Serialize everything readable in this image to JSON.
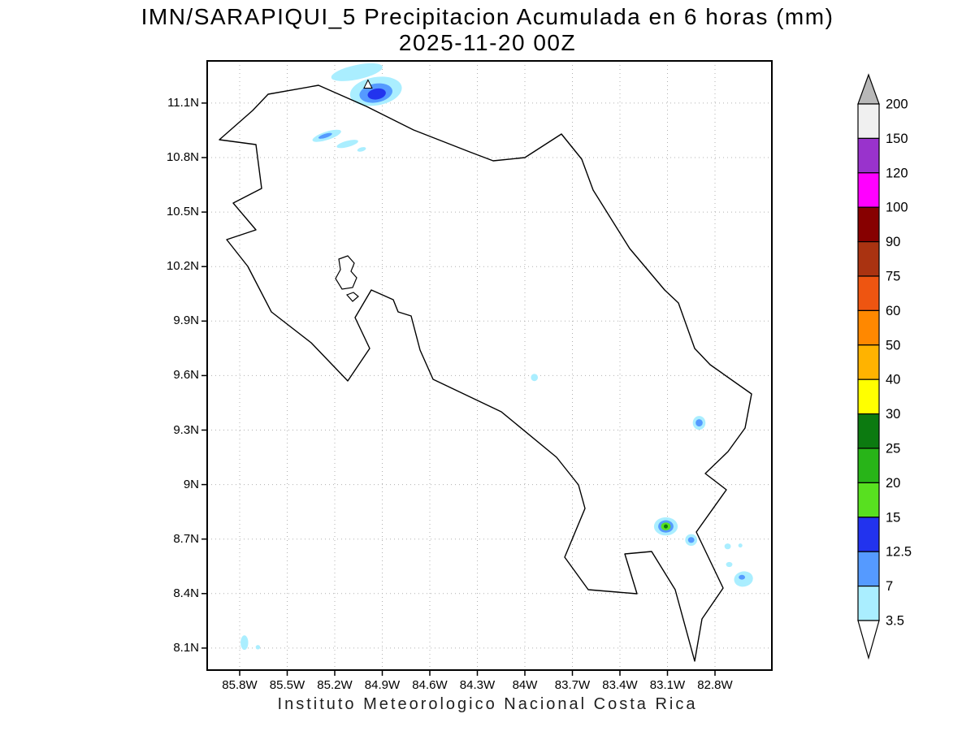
{
  "title": {
    "line1": "IMN/SARAPIQUI_5 Precipitacion Acumulada en 6 horas (mm)",
    "line2": "2025-11-20 00Z"
  },
  "footer": {
    "caption": "Instituto Meteorologico Nacional Costa Rica"
  },
  "chart_data": {
    "type": "heatmap",
    "subtype": "shaded-contour-precipitation-map",
    "title": "IMN/SARAPIQUI_5 Precipitacion Acumulada en 6 horas (mm)",
    "subtitle": "2025-11-20 00Z",
    "region": "Costa Rica",
    "units": "mm",
    "grid": "dotted",
    "axes": {
      "lon_w_range": [
        86.005,
        82.441
      ],
      "lat_n_range": [
        11.332,
        7.979
      ],
      "lon_ticks": [
        {
          "value": 85.8,
          "label": "85.8W"
        },
        {
          "value": 85.5,
          "label": "85.5W"
        },
        {
          "value": 85.2,
          "label": "85.2W"
        },
        {
          "value": 84.9,
          "label": "84.9W"
        },
        {
          "value": 84.6,
          "label": "84.6W"
        },
        {
          "value": 84.3,
          "label": "84.3W"
        },
        {
          "value": 84.0,
          "label": "84W"
        },
        {
          "value": 83.7,
          "label": "83.7W"
        },
        {
          "value": 83.4,
          "label": "83.4W"
        },
        {
          "value": 83.1,
          "label": "83.1W"
        },
        {
          "value": 82.8,
          "label": "82.8W"
        }
      ],
      "lat_ticks": [
        {
          "value": 11.1,
          "label": "11.1N"
        },
        {
          "value": 10.8,
          "label": "10.8N"
        },
        {
          "value": 10.5,
          "label": "10.5N"
        },
        {
          "value": 10.2,
          "label": "10.2N"
        },
        {
          "value": 9.9,
          "label": "9.9N"
        },
        {
          "value": 9.6,
          "label": "9.6N"
        },
        {
          "value": 9.3,
          "label": "9.3N"
        },
        {
          "value": 9.0,
          "label": "9N"
        },
        {
          "value": 8.7,
          "label": "8.7N"
        },
        {
          "value": 8.4,
          "label": "8.4N"
        },
        {
          "value": 8.1,
          "label": "8.1N"
        }
      ]
    },
    "colorbar": {
      "levels_top_to_bottom": [
        "200",
        "150",
        "120",
        "100",
        "90",
        "75",
        "60",
        "50",
        "40",
        "30",
        "25",
        "20",
        "15",
        "12.5",
        "7",
        "3.5"
      ],
      "segment_colors_top_to_bottom": [
        "#f0f0f0",
        "#9933cc",
        "#ff00ff",
        "#870000",
        "#aa3311",
        "#ee5511",
        "#ff8800",
        "#ffb300",
        "#ffff00",
        "#0c7a10",
        "#28b418",
        "#58e020",
        "#2233ee",
        "#559aff",
        "#aaeeff"
      ],
      "above_max_color": "#b8b8b8",
      "below_min_color": "#ffffff"
    },
    "precip_cells": [
      {
        "name": "north-band-west",
        "lon_w": 85.06,
        "lat_n": 11.27,
        "rx_deg": 0.165,
        "ry_deg": 0.04,
        "rot_deg": -12,
        "level_mm": "3.5-7",
        "color": "#aaeeff"
      },
      {
        "name": "north-band-main-outer",
        "lon_w": 84.94,
        "lat_n": 11.165,
        "rx_deg": 0.165,
        "ry_deg": 0.078,
        "rot_deg": -10,
        "level_mm": "3.5-7",
        "color": "#aaeeff"
      },
      {
        "name": "north-band-main-mid",
        "lon_w": 84.94,
        "lat_n": 11.155,
        "rx_deg": 0.105,
        "ry_deg": 0.052,
        "rot_deg": -10,
        "level_mm": "7-12.5",
        "color": "#559aff"
      },
      {
        "name": "north-band-main-core",
        "lon_w": 84.935,
        "lat_n": 11.15,
        "rx_deg": 0.058,
        "ry_deg": 0.03,
        "rot_deg": -10,
        "level_mm": "12.5-15",
        "color": "#2233ee"
      },
      {
        "name": "guanacaste-streak-a",
        "lon_w": 85.25,
        "lat_n": 10.92,
        "rx_deg": 0.095,
        "ry_deg": 0.023,
        "rot_deg": -18,
        "level_mm": "3.5-7",
        "color": "#aaeeff"
      },
      {
        "name": "guanacaste-streak-a-core",
        "lon_w": 85.26,
        "lat_n": 10.92,
        "rx_deg": 0.045,
        "ry_deg": 0.011,
        "rot_deg": -18,
        "level_mm": "7-12.5",
        "color": "#559aff"
      },
      {
        "name": "guanacaste-streak-b",
        "lon_w": 85.12,
        "lat_n": 10.875,
        "rx_deg": 0.07,
        "ry_deg": 0.017,
        "rot_deg": -15,
        "level_mm": "3.5-7",
        "color": "#aaeeff"
      },
      {
        "name": "guanacaste-streak-c",
        "lon_w": 85.03,
        "lat_n": 10.845,
        "rx_deg": 0.028,
        "ry_deg": 0.011,
        "rot_deg": -15,
        "level_mm": "3.5-7",
        "color": "#aaeeff"
      },
      {
        "name": "central-pacific-dot",
        "lon_w": 83.94,
        "lat_n": 9.59,
        "rx_deg": 0.022,
        "ry_deg": 0.02,
        "rot_deg": 0,
        "level_mm": "3.5-7",
        "color": "#aaeeff"
      },
      {
        "name": "talamanca-dot-outer",
        "lon_w": 82.9,
        "lat_n": 9.34,
        "rx_deg": 0.04,
        "ry_deg": 0.038,
        "rot_deg": 0,
        "level_mm": "3.5-7",
        "color": "#aaeeff"
      },
      {
        "name": "talamanca-dot-core",
        "lon_w": 82.9,
        "lat_n": 9.34,
        "rx_deg": 0.022,
        "ry_deg": 0.02,
        "rot_deg": 0,
        "level_mm": "7-12.5",
        "color": "#559aff"
      },
      {
        "name": "south-cell-outer",
        "lon_w": 83.11,
        "lat_n": 8.77,
        "rx_deg": 0.075,
        "ry_deg": 0.05,
        "rot_deg": 0,
        "level_mm": "3.5-7",
        "color": "#aaeeff"
      },
      {
        "name": "south-cell-blue",
        "lon_w": 83.11,
        "lat_n": 8.77,
        "rx_deg": 0.048,
        "ry_deg": 0.034,
        "rot_deg": 0,
        "level_mm": "7-12.5",
        "color": "#559aff"
      },
      {
        "name": "south-cell-green",
        "lon_w": 83.11,
        "lat_n": 8.77,
        "rx_deg": 0.03,
        "ry_deg": 0.022,
        "rot_deg": 0,
        "level_mm": "15-20",
        "color": "#58e020"
      },
      {
        "name": "south-cell-core",
        "lon_w": 83.11,
        "lat_n": 8.77,
        "rx_deg": 0.013,
        "ry_deg": 0.011,
        "rot_deg": 0,
        "level_mm": "25-30",
        "color": "#0c7a10"
      },
      {
        "name": "south-dot-outer",
        "lon_w": 82.95,
        "lat_n": 8.695,
        "rx_deg": 0.038,
        "ry_deg": 0.032,
        "rot_deg": 0,
        "level_mm": "3.5-7",
        "color": "#aaeeff"
      },
      {
        "name": "south-dot-core",
        "lon_w": 82.95,
        "lat_n": 8.695,
        "rx_deg": 0.02,
        "ry_deg": 0.016,
        "rot_deg": 0,
        "level_mm": "7-12.5",
        "color": "#559aff"
      },
      {
        "name": "southeast-dot-a",
        "lon_w": 82.72,
        "lat_n": 8.66,
        "rx_deg": 0.02,
        "ry_deg": 0.016,
        "rot_deg": 0,
        "level_mm": "3.5-7",
        "color": "#aaeeff"
      },
      {
        "name": "southeast-dot-b",
        "lon_w": 82.64,
        "lat_n": 8.665,
        "rx_deg": 0.013,
        "ry_deg": 0.011,
        "rot_deg": 0,
        "level_mm": "3.5-7",
        "color": "#aaeeff"
      },
      {
        "name": "southeast-cell-outer",
        "lon_w": 82.62,
        "lat_n": 8.48,
        "rx_deg": 0.06,
        "ry_deg": 0.042,
        "rot_deg": -10,
        "level_mm": "3.5-7",
        "color": "#aaeeff"
      },
      {
        "name": "southeast-cell-core",
        "lon_w": 82.63,
        "lat_n": 8.49,
        "rx_deg": 0.02,
        "ry_deg": 0.013,
        "rot_deg": 0,
        "level_mm": "7-12.5",
        "color": "#559aff"
      },
      {
        "name": "southeast-cell-small",
        "lon_w": 82.71,
        "lat_n": 8.56,
        "rx_deg": 0.02,
        "ry_deg": 0.014,
        "rot_deg": 0,
        "level_mm": "3.5-7",
        "color": "#aaeeff"
      },
      {
        "name": "southwest-dot-a",
        "lon_w": 85.77,
        "lat_n": 8.13,
        "rx_deg": 0.024,
        "ry_deg": 0.04,
        "rot_deg": 0,
        "level_mm": "3.5-7",
        "color": "#aaeeff"
      },
      {
        "name": "southwest-dot-b",
        "lon_w": 85.685,
        "lat_n": 8.105,
        "rx_deg": 0.014,
        "ry_deg": 0.012,
        "rot_deg": 0,
        "level_mm": "3.5-7",
        "color": "#aaeeff"
      }
    ],
    "station_marker": {
      "symbol": "triangle",
      "lon_w": 84.99,
      "lat_n": 11.2
    }
  }
}
